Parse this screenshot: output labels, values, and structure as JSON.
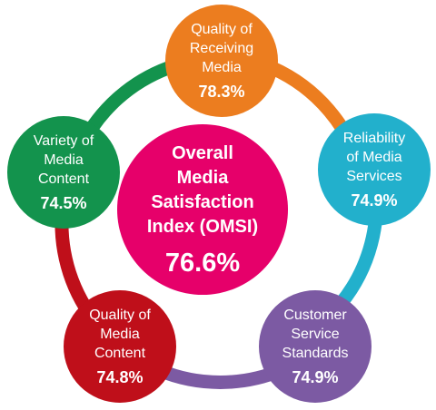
{
  "center": {
    "label": "Overall\nMedia\nSatisfaction\nIndex (OMSI)",
    "value": "76.6%",
    "color": "#e6006a"
  },
  "nodes": [
    {
      "id": "receiving",
      "label": "Quality of\nReceiving\nMedia",
      "value": "78.3%",
      "color": "#ec7d1f"
    },
    {
      "id": "reliability",
      "label": "Reliability\nof Media\nServices",
      "value": "74.9%",
      "color": "#22b0cc"
    },
    {
      "id": "customer",
      "label": "Customer\nService\nStandards",
      "value": "74.9%",
      "color": "#7c5aa3"
    },
    {
      "id": "content-quality",
      "label": "Quality of\nMedia\nContent",
      "value": "74.8%",
      "color": "#bf0f1a"
    },
    {
      "id": "variety",
      "label": "Variety of\nMedia\nContent",
      "value": "74.5%",
      "color": "#13934d"
    }
  ]
}
